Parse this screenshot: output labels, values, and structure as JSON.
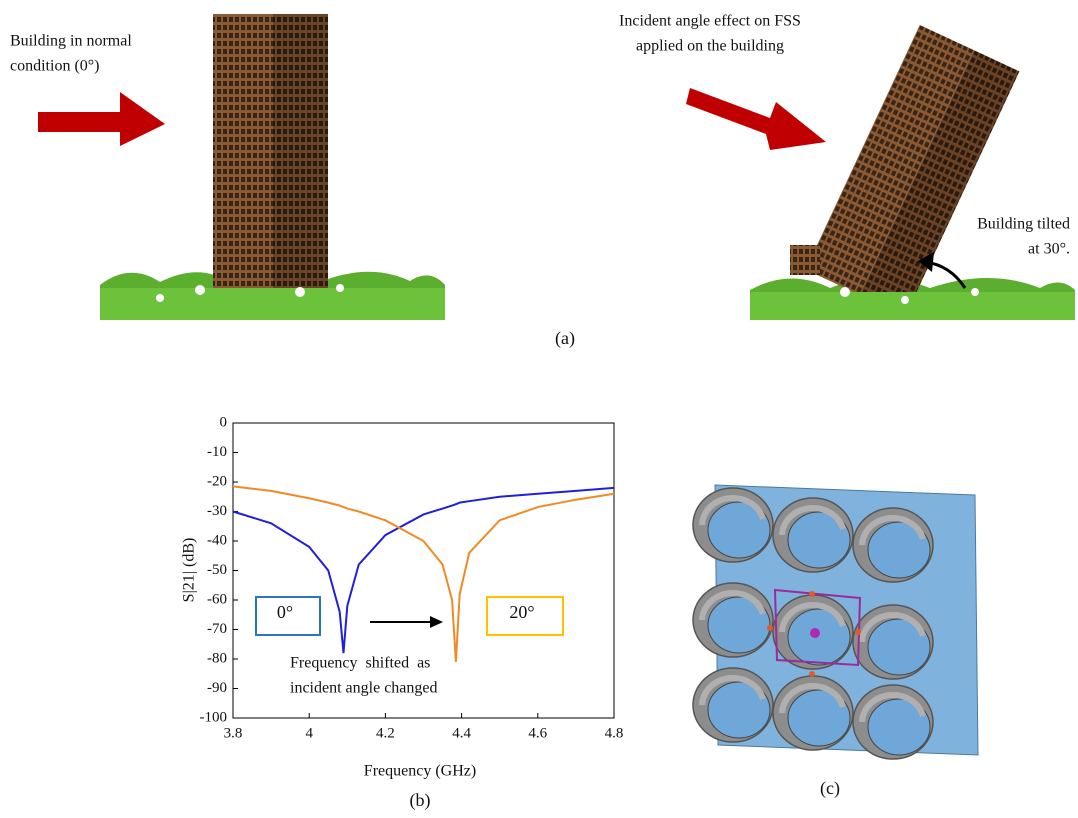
{
  "panel_a": {
    "left_caption": [
      "Building in normal",
      "condition (0°)"
    ],
    "right_caption": [
      "Incident angle effect on FSS",
      "applied on the building"
    ],
    "tilt_caption": [
      "Building tilted",
      "at 30°."
    ],
    "label": "(a)"
  },
  "panel_c": {
    "label": "(c)"
  },
  "chart_data": {
    "type": "line",
    "panel_label": "(b)",
    "xlabel": "Frequency (GHz)",
    "ylabel": "S|21| (dB)",
    "x": [
      3.8,
      3.9,
      4.0,
      4.05,
      4.08,
      4.09,
      4.1,
      4.13,
      4.2,
      4.3,
      4.35,
      4.375,
      4.385,
      4.395,
      4.42,
      4.5,
      4.6,
      4.7,
      4.8
    ],
    "series": [
      {
        "color": "#1f1fdc",
        "values": [
          -30,
          -34,
          -42,
          -50,
          -64,
          -78,
          -62,
          -48,
          -38,
          -31,
          -29,
          -28,
          -27.5,
          -27,
          -26.5,
          -25,
          -24,
          -23,
          -22
        ]
      },
      {
        "color": "#f08a24",
        "values": [
          -21.5,
          -23,
          -25.5,
          -27,
          -28,
          -28.5,
          -29,
          -30,
          -33,
          -40,
          -48,
          -60,
          -81,
          -58,
          -44,
          -33,
          -28.5,
          -26,
          -24
        ]
      }
    ],
    "annotations": [
      "0°",
      "20°",
      "Frequency  shifted  as",
      "incident angle changed"
    ],
    "xlim": [
      3.8,
      4.8
    ],
    "xticks": [
      3.8,
      4,
      4.2,
      4.4,
      4.6,
      4.8
    ],
    "ylim": [
      -100,
      0
    ],
    "yticks": [
      0,
      -10,
      -20,
      -30,
      -40,
      -50,
      -60,
      -70,
      -80,
      -90,
      -100
    ]
  }
}
